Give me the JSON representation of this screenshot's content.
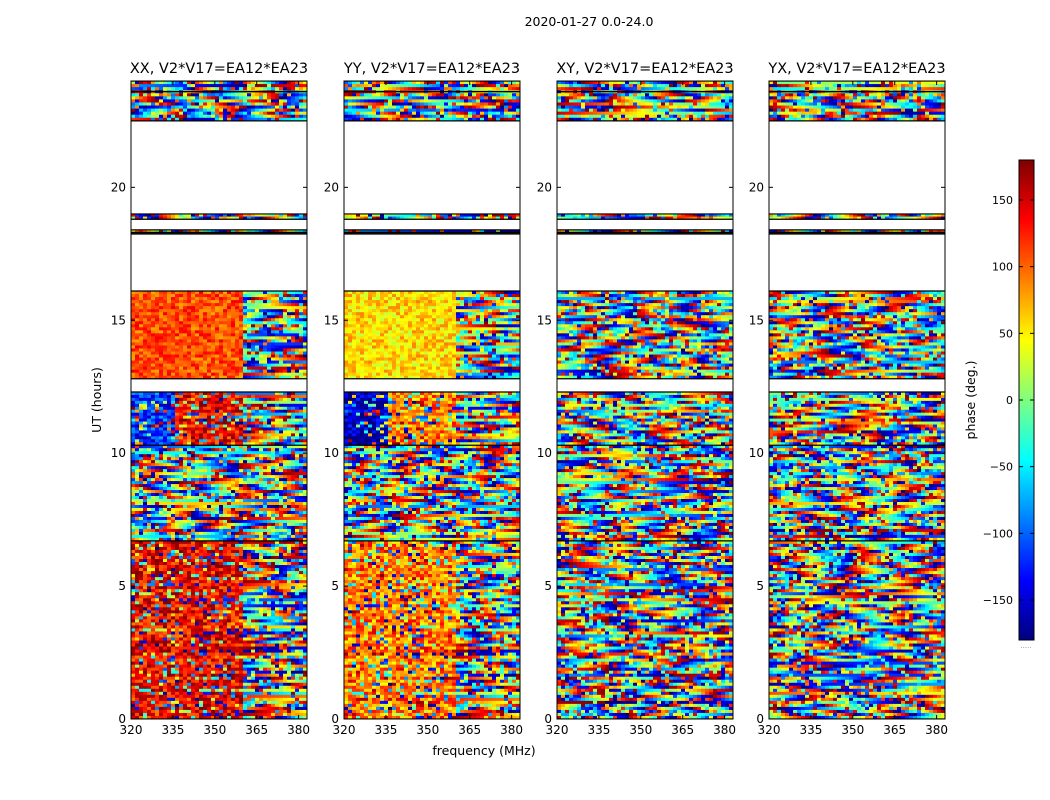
{
  "figure": {
    "suptitle": "2020-01-27 0.0-24.0",
    "xlabel": "frequency (MHz)",
    "ylabel": "UT (hours)"
  },
  "colorbar": {
    "label": "phase (deg.)",
    "range": [
      -180,
      180
    ],
    "ticks": [
      -150,
      -100,
      -50,
      0,
      50,
      100,
      150
    ],
    "tick_labels": [
      "−150",
      "−100",
      "−50",
      "0",
      "50",
      "100",
      "150"
    ],
    "colors": [
      "#00007f",
      "#0000ff",
      "#007fff",
      "#00ffff",
      "#7fff7f",
      "#ffff00",
      "#ff7f00",
      "#ff0000",
      "#7f0000"
    ],
    "footer": "....."
  },
  "chart_data": [
    {
      "type": "heatmap",
      "title": "XX, V2*V17=EA12*EA23",
      "xlabel": "frequency (MHz)",
      "ylabel": "UT (hours)",
      "xlim": [
        320,
        383
      ],
      "ylim": [
        0,
        24
      ],
      "xticks": [
        320,
        335,
        350,
        365,
        380
      ],
      "yticks": [
        0,
        5,
        10,
        15,
        20
      ],
      "value": "phase (deg.)",
      "data_segments_ut": [
        [
          0,
          6.7
        ],
        [
          6.7,
          10.3
        ],
        [
          10.3,
          12.3
        ],
        [
          12.8,
          16.1
        ],
        [
          18.3,
          18.4
        ],
        [
          18.8,
          19.0
        ],
        [
          22.5,
          24.0
        ]
      ],
      "blank_ut": [
        [
          16.1,
          18.2
        ],
        [
          19.0,
          22.5
        ]
      ]
    },
    {
      "type": "heatmap",
      "title": "YY, V2*V17=EA12*EA23",
      "xlabel": "frequency (MHz)",
      "ylabel": "UT (hours)",
      "xlim": [
        320,
        383
      ],
      "ylim": [
        0,
        24
      ],
      "xticks": [
        320,
        335,
        350,
        365,
        380
      ],
      "yticks": [
        0,
        5,
        10,
        15,
        20
      ],
      "value": "phase (deg.)",
      "data_segments_ut": [
        [
          0,
          6.7
        ],
        [
          6.7,
          10.3
        ],
        [
          10.3,
          12.3
        ],
        [
          12.8,
          16.1
        ],
        [
          18.3,
          18.4
        ],
        [
          18.8,
          19.0
        ],
        [
          22.5,
          24.0
        ]
      ],
      "blank_ut": [
        [
          16.1,
          18.2
        ],
        [
          19.0,
          22.5
        ]
      ]
    },
    {
      "type": "heatmap",
      "title": "XY, V2*V17=EA12*EA23",
      "xlabel": "frequency (MHz)",
      "ylabel": "UT (hours)",
      "xlim": [
        320,
        383
      ],
      "ylim": [
        0,
        24
      ],
      "xticks": [
        320,
        335,
        350,
        365,
        380
      ],
      "yticks": [
        0,
        5,
        10,
        15,
        20
      ],
      "value": "phase (deg.)",
      "data_segments_ut": [
        [
          0,
          6.7
        ],
        [
          6.7,
          10.3
        ],
        [
          10.3,
          12.3
        ],
        [
          12.8,
          16.1
        ],
        [
          18.3,
          18.4
        ],
        [
          18.8,
          19.0
        ],
        [
          22.5,
          24.0
        ]
      ],
      "blank_ut": [
        [
          16.1,
          18.2
        ],
        [
          19.0,
          22.5
        ]
      ]
    },
    {
      "type": "heatmap",
      "title": "YX, V2*V17=EA12*EA23",
      "xlabel": "frequency (MHz)",
      "ylabel": "UT (hours)",
      "xlim": [
        320,
        383
      ],
      "ylim": [
        0,
        24
      ],
      "xticks": [
        320,
        335,
        350,
        365,
        380
      ],
      "yticks": [
        0,
        5,
        10,
        15,
        20
      ],
      "value": "phase (deg.)",
      "data_segments_ut": [
        [
          0,
          6.7
        ],
        [
          6.7,
          10.3
        ],
        [
          10.3,
          12.3
        ],
        [
          12.8,
          16.1
        ],
        [
          18.3,
          18.4
        ],
        [
          18.8,
          19.0
        ],
        [
          22.5,
          24.0
        ]
      ],
      "blank_ut": [
        [
          16.1,
          18.2
        ],
        [
          19.0,
          22.5
        ]
      ]
    }
  ]
}
